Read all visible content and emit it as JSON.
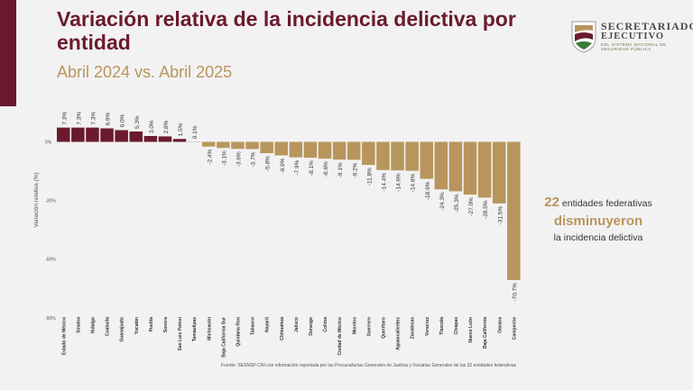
{
  "header": {
    "title": "Variación relativa de la incidencia delictiva por entidad",
    "subtitle": "Abril 2024 vs. Abril 2025"
  },
  "logo": {
    "line1": "SECRETARIADO",
    "line2": "EJECUTIVO",
    "line3": "DEL SISTEMA NACIONAL DE SEGURIDAD PÚBLICA"
  },
  "annotation": {
    "count": "22",
    "line1_rest": "entidades federativas",
    "line2": "disminuyeron",
    "line3": "la incidencia delictiva"
  },
  "source": "Fuente: SESNSP-CNI con información reportada por las Procuradurías Generales de Justicia y Fiscalías Generales de las 32 entidades federativas",
  "colors": {
    "increase": "#6b1a2e",
    "decrease": "#b8955c",
    "tiny": "#c8c8c8"
  },
  "chart_data": {
    "type": "bar",
    "ylabel": "Variación relativa (%)",
    "yticks": [
      "0%",
      "-30%",
      "-60%",
      "-90%"
    ],
    "ylim": [
      -90,
      10
    ],
    "categories": [
      "Estado de México",
      "Sinaloa",
      "Hidalgo",
      "Coahuila",
      "Guanajuato",
      "Yucatán",
      "Puebla",
      "Sonora",
      "San Luis Potosí",
      "Tamaulipas",
      "Michoacán",
      "Baja California Sur",
      "Quintana Roo",
      "Tabasco",
      "Nayarit",
      "Chihuahua",
      "Jalisco",
      "Durango",
      "Colima",
      "Ciudad de México",
      "Morelos",
      "Guerrero",
      "Querétaro",
      "Aguascalientes",
      "Zacatecas",
      "Veracruz",
      "Tlaxcala",
      "Chiapas",
      "Nuevo León",
      "Baja California",
      "Oaxaca",
      "Campeche"
    ],
    "values": [
      7.3,
      7.3,
      7.3,
      6.9,
      6.0,
      5.3,
      3.0,
      2.8,
      1.5,
      0.1,
      -2.4,
      -3.1,
      -3.6,
      -3.7,
      -5.8,
      -6.9,
      -7.9,
      -8.1,
      -8.6,
      -9.1,
      -9.2,
      -11.8,
      -14.4,
      -14.6,
      -14.8,
      -18.9,
      -24.3,
      -25.3,
      -27.0,
      -28.5,
      -31.5,
      -70.7
    ],
    "labels": [
      "7.3%",
      "7.3%",
      "7.3%",
      "6.9%",
      "6.0%",
      "5.3%",
      "3.0%",
      "2.8%",
      "1.5%",
      "0.1%",
      "-2.4%",
      "-3.1%",
      "-3.6%",
      "-3.7%",
      "-5.8%",
      "-6.9%",
      "-7.9%",
      "-8.1%",
      "-8.6%",
      "-9.1%",
      "-9.2%",
      "-11.8%",
      "-14.4%",
      "-14.6%",
      "-14.8%",
      "-18.9%",
      "-24.3%",
      "-25.3%",
      "-27.0%",
      "-28.5%",
      "-31.5%",
      "-70.7%"
    ],
    "grid": false,
    "legend": "none"
  }
}
